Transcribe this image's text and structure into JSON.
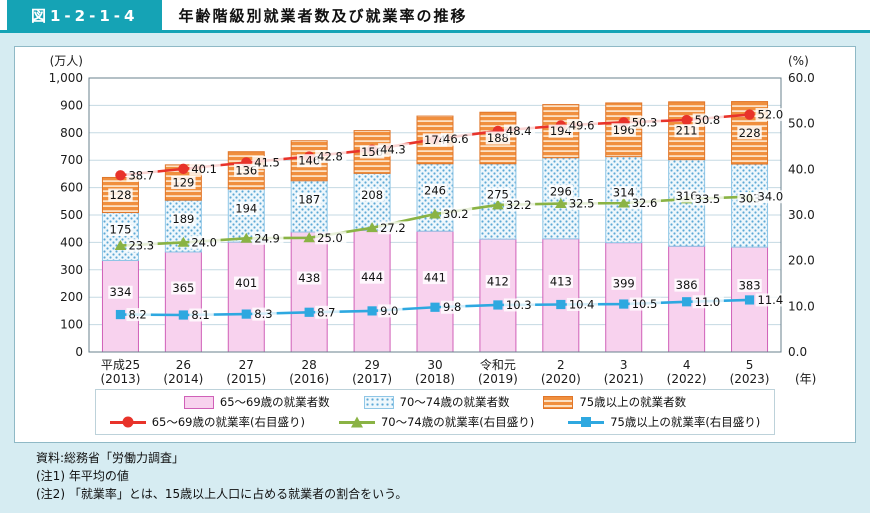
{
  "header": {
    "figure_number": "図1-2-1-4",
    "title": "年齢階級別就業者数及び就業率の推移"
  },
  "chart_data": {
    "type": "bar",
    "subtype": "stacked-bars-with-overlay-lines",
    "left_axis": {
      "unit_label": "(万人)",
      "min": 0,
      "max": 1000,
      "step": 100,
      "ticks": [
        "1,000",
        "900",
        "800",
        "700",
        "600",
        "500",
        "400",
        "300",
        "200",
        "100",
        "0"
      ]
    },
    "right_axis": {
      "unit_label": "(%)",
      "min": 0,
      "max": 60,
      "step": 10,
      "ticks": [
        "60.0",
        "50.0",
        "40.0",
        "30.0",
        "20.0",
        "10.0",
        "0.0"
      ]
    },
    "x_axis": {
      "unit_label": "(年)",
      "categories": [
        {
          "era": "平成25",
          "year": "(2013)"
        },
        {
          "era": "26",
          "year": "(2014)"
        },
        {
          "era": "27",
          "year": "(2015)"
        },
        {
          "era": "28",
          "year": "(2016)"
        },
        {
          "era": "29",
          "year": "(2017)"
        },
        {
          "era": "30",
          "year": "(2018)"
        },
        {
          "era": "令和元",
          "year": "(2019)"
        },
        {
          "era": "2",
          "year": "(2020)"
        },
        {
          "era": "3",
          "year": "(2021)"
        },
        {
          "era": "4",
          "year": "(2022)"
        },
        {
          "era": "5",
          "year": "(2023)"
        }
      ]
    },
    "bar_series": [
      {
        "name": "65〜69歳の就業者数",
        "axis": "left",
        "pattern": "solid",
        "fill": "#f8d2ee",
        "stroke": "#d060b8",
        "values": [
          334,
          365,
          401,
          438,
          444,
          441,
          412,
          413,
          399,
          386,
          383
        ]
      },
      {
        "name": "70〜74歳の就業者数",
        "axis": "left",
        "pattern": "dots",
        "fill": "#eef7fc",
        "stroke": "#8fc6e6",
        "accent": "#5da9d6",
        "values": [
          175,
          189,
          194,
          187,
          208,
          246,
          275,
          296,
          314,
          316,
          303
        ]
      },
      {
        "name": "75歳以上の就業者数",
        "axis": "left",
        "pattern": "stripes",
        "fill": "#f08f3e",
        "stroke": "#e0762a",
        "accent": "#fce1c4",
        "values": [
          128,
          129,
          136,
          146,
          156,
          174,
          188,
          194,
          196,
          211,
          228
        ]
      }
    ],
    "line_series": [
      {
        "name": "65〜69歳の就業率(右目盛り)",
        "axis": "right",
        "marker": "circle",
        "color": "#e8332a",
        "values": [
          38.7,
          40.1,
          41.5,
          42.8,
          44.3,
          46.6,
          48.4,
          49.6,
          50.3,
          50.8,
          52.0
        ]
      },
      {
        "name": "70〜74歳の就業率(右目盛り)",
        "axis": "right",
        "marker": "triangle",
        "color": "#8ab344",
        "values": [
          23.3,
          24.0,
          24.9,
          25.0,
          27.2,
          30.2,
          32.2,
          32.5,
          32.6,
          33.5,
          34.0
        ]
      },
      {
        "name": "75歳以上の就業率(右目盛り)",
        "axis": "right",
        "marker": "square",
        "color": "#2ea8e0",
        "values": [
          8.2,
          8.1,
          8.3,
          8.7,
          9.0,
          9.8,
          10.3,
          10.4,
          10.5,
          11.0,
          11.4
        ]
      }
    ],
    "grid": true,
    "legend_position": "bottom"
  },
  "notes": {
    "source": "資料:総務省「労働力調査」",
    "note1": "(注1) 年平均の値",
    "note2": "(注2) 「就業率」とは、15歳以上人口に占める就業者の割合をいう。"
  },
  "colors": {
    "accent_teal": "#15a3b5",
    "page_background": "#d6ecf2",
    "gridline": "#c5dae3",
    "plot_border": "#69808d"
  }
}
